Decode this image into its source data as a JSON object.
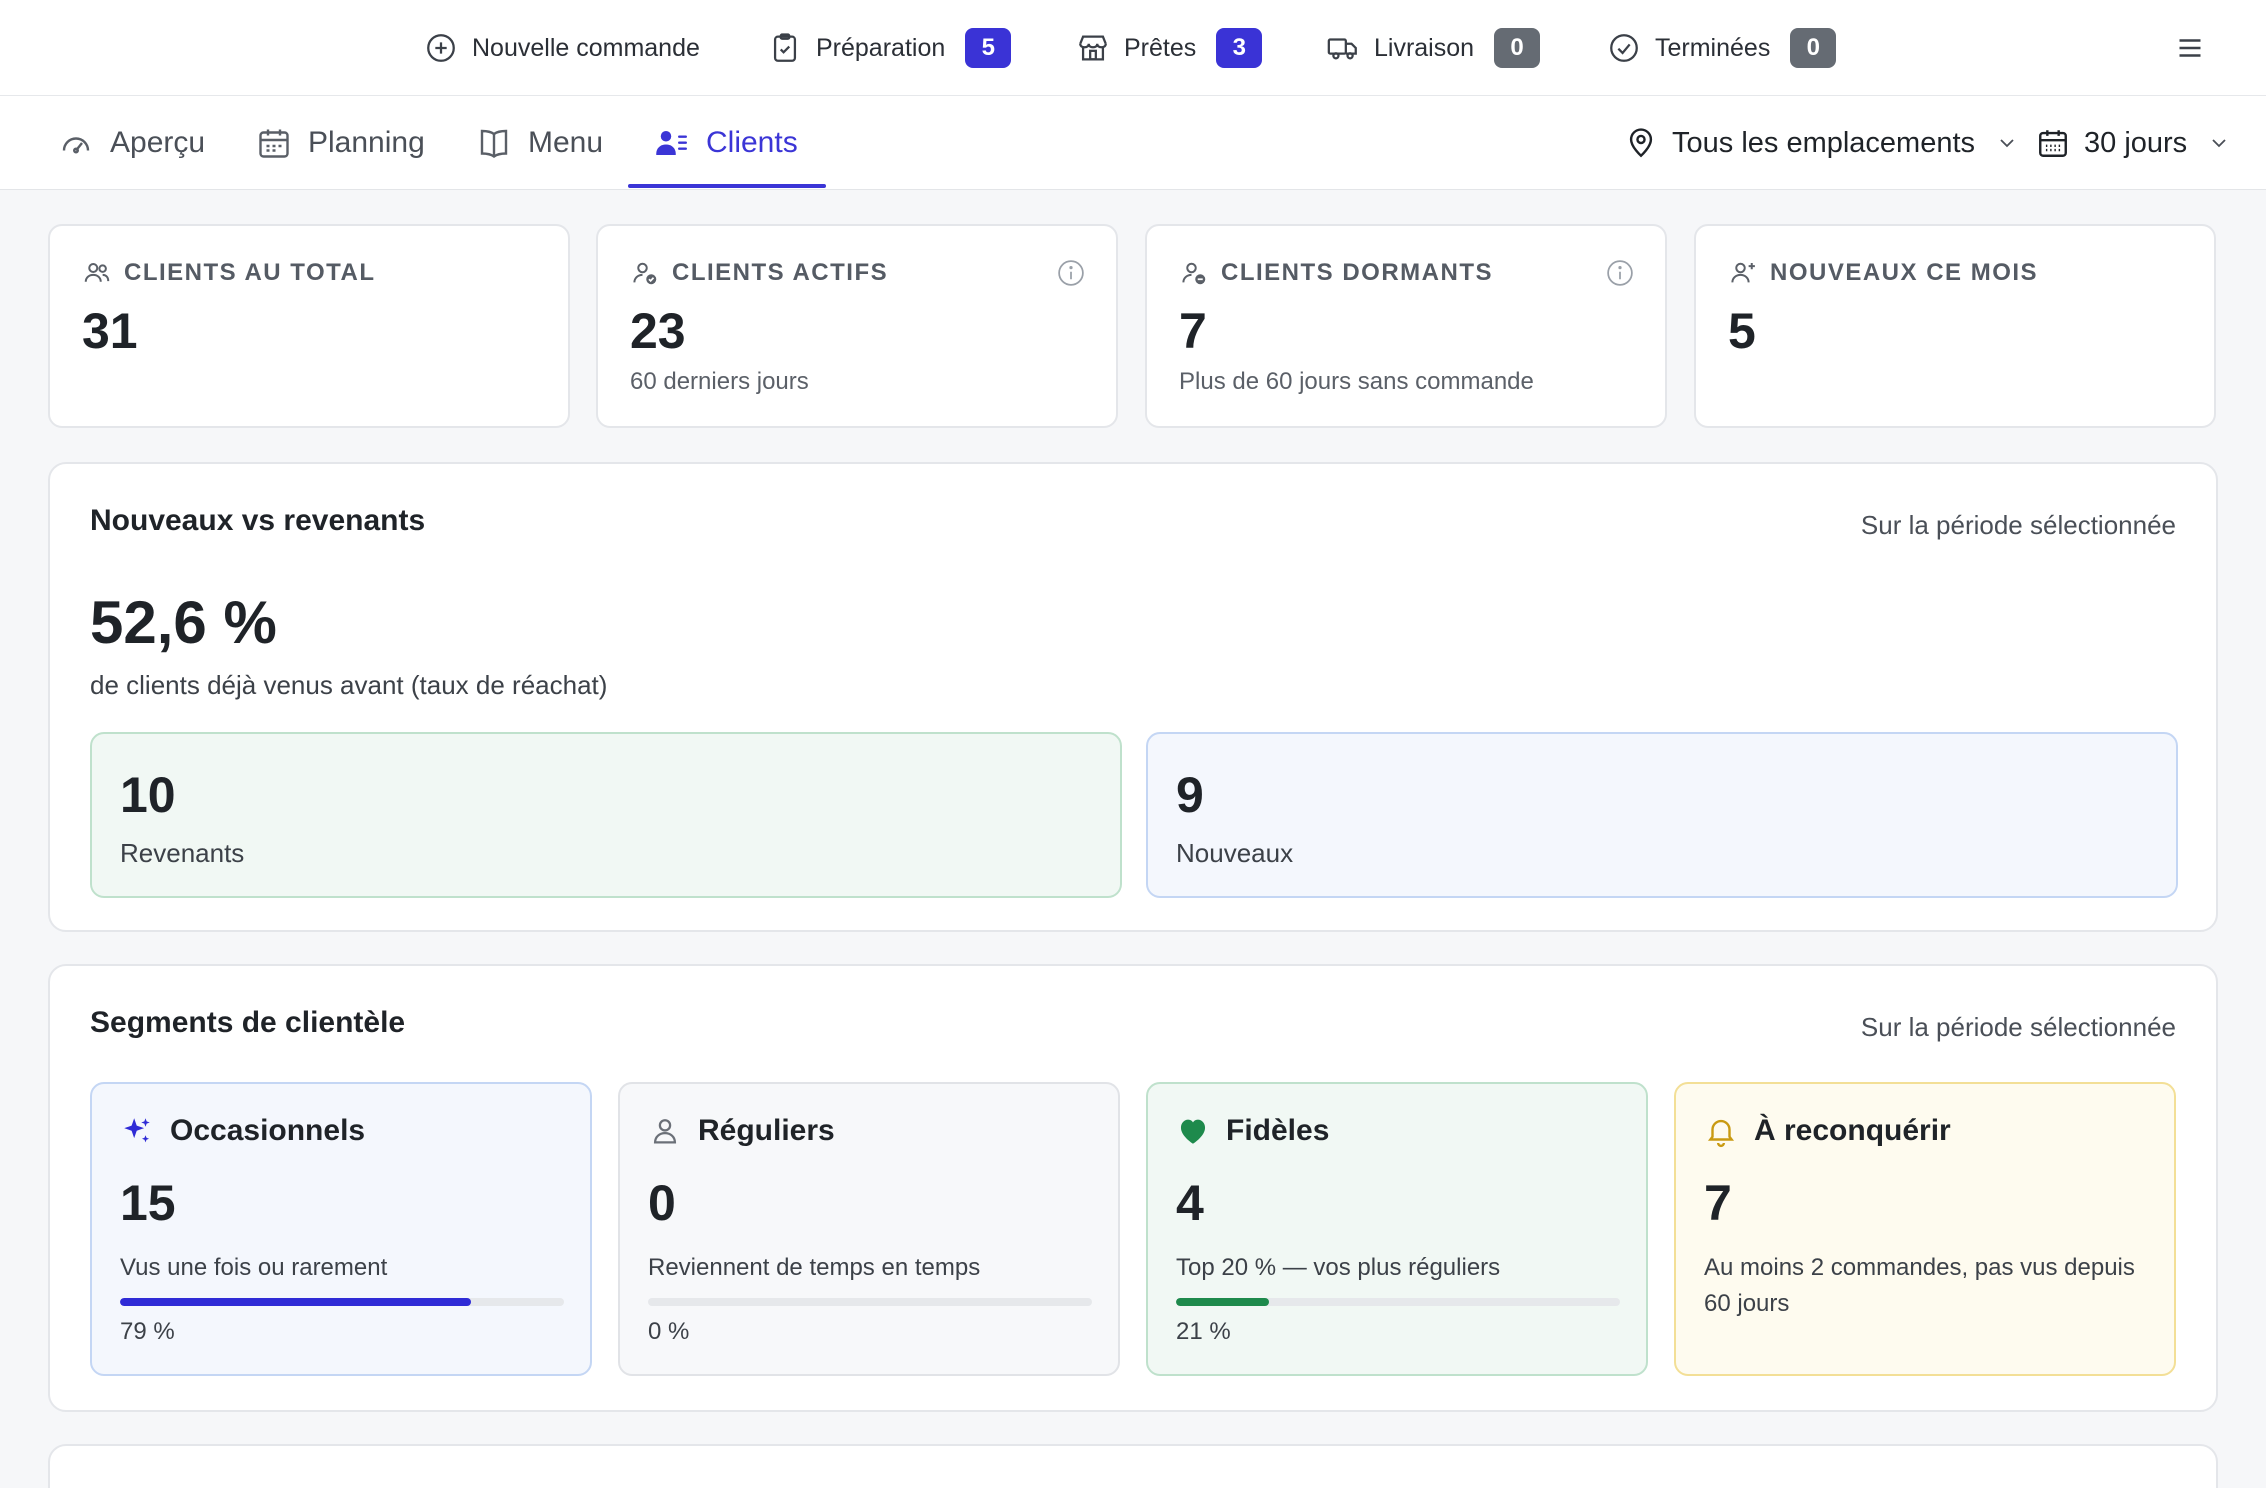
{
  "status_bar": {
    "new_order": "Nouvelle commande",
    "items": [
      {
        "label": "Préparation",
        "count": "5",
        "badge_color": "#3a33d6"
      },
      {
        "label": "Prêtes",
        "count": "3",
        "badge_color": "#3a33d6"
      },
      {
        "label": "Livraison",
        "count": "0",
        "badge_color": "#656b73"
      },
      {
        "label": "Terminées",
        "count": "0",
        "badge_color": "#656b73"
      }
    ]
  },
  "tabs": [
    {
      "label": "Aperçu",
      "icon": "gauge-icon"
    },
    {
      "label": "Planning",
      "icon": "calendar-icon"
    },
    {
      "label": "Menu",
      "icon": "book-icon"
    },
    {
      "label": "Clients",
      "icon": "users-list-icon",
      "active": true
    }
  ],
  "filters": {
    "location": "Tous les emplacements",
    "period": "30 jours"
  },
  "stats": [
    {
      "label": "CLIENTS AU TOTAL",
      "value": "31",
      "sub": "",
      "icon": "users-icon"
    },
    {
      "label": "CLIENTS ACTIFS",
      "value": "23",
      "sub": "60 derniers jours",
      "icon": "user-check-icon"
    },
    {
      "label": "CLIENTS DORMANTS",
      "value": "7",
      "sub": "Plus de 60 jours sans commande",
      "icon": "user-minus-icon"
    },
    {
      "label": "NOUVEAUX CE MOIS",
      "value": "5",
      "sub": "",
      "icon": "user-plus-icon"
    }
  ],
  "new_vs_returning": {
    "title": "Nouveaux vs revenants",
    "hint": "Sur la période sélectionnée",
    "percent": "52,6 %",
    "caption": "de clients déjà venus avant (taux de réachat)",
    "returning": {
      "value": "10",
      "label": "Revenants"
    },
    "new": {
      "value": "9",
      "label": "Nouveaux"
    }
  },
  "segments": {
    "title": "Segments de clientèle",
    "hint": "Sur la période sélectionnée",
    "items": [
      {
        "name": "Occasionnels",
        "value": "15",
        "desc": "Vus une fois ou rarement",
        "percent_label": "79 %",
        "fraction": 0.79,
        "icon": "sparkles-icon",
        "color": "#2f2bd6"
      },
      {
        "name": "Réguliers",
        "value": "0",
        "desc": "Reviennent de temps en temps",
        "percent_label": "0 %",
        "fraction": 0,
        "icon": "user-icon",
        "color": "#6b7078"
      },
      {
        "name": "Fidèles",
        "value": "4",
        "desc": "Top 20 % — vos plus réguliers",
        "percent_label": "21 %",
        "fraction": 0.21,
        "icon": "heart-icon",
        "color": "#1e8a4c"
      },
      {
        "name": "À reconquérir",
        "value": "7",
        "desc": "Au moins 2 commandes, pas vus depuis 60 jours",
        "icon": "bell-icon",
        "color": "#c99a12"
      }
    ]
  }
}
